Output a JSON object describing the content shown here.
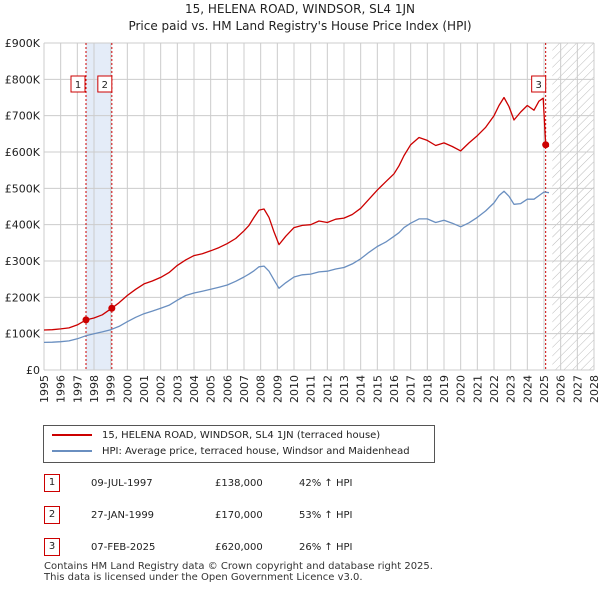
{
  "title_line1": "15, HELENA ROAD, WINDSOR, SL4 1JN",
  "title_line2": "Price paid vs. HM Land Registry's House Price Index (HPI)",
  "colors": {
    "property": "#cc0000",
    "hpi": "#6a8fc0",
    "shade": "#e4ecf8",
    "grid": "#cccccc",
    "vline": "#cc0000"
  },
  "legend": {
    "property_label": "15, HELENA ROAD, WINDSOR, SL4 1JN (terraced house)",
    "hpi_label": "HPI: Average price, terraced house, Windsor and Maidenhead"
  },
  "transactions": [
    {
      "num": "1",
      "date": "09-JUL-1997",
      "price": "£138,000",
      "hpi": "42% ↑ HPI"
    },
    {
      "num": "2",
      "date": "27-JAN-1999",
      "price": "£170,000",
      "hpi": "53% ↑ HPI"
    },
    {
      "num": "3",
      "date": "07-FEB-2025",
      "price": "£620,000",
      "hpi": "26% ↑ HPI"
    }
  ],
  "footer_line1": "Contains HM Land Registry data © Crown copyright and database right 2025.",
  "footer_line2": "This data is licensed under the Open Government Licence v3.0.",
  "chart_data": {
    "type": "line",
    "title": "15, HELENA ROAD, WINDSOR, SL4 1JN",
    "subtitle": "Price paid vs. HM Land Registry's House Price Index (HPI)",
    "xlim": [
      1995,
      2028
    ],
    "ylim": [
      0,
      900000
    ],
    "y_ticks": [
      0,
      100000,
      200000,
      300000,
      400000,
      500000,
      600000,
      700000,
      800000,
      900000
    ],
    "y_tick_labels": [
      "£0",
      "£100K",
      "£200K",
      "£300K",
      "£400K",
      "£500K",
      "£600K",
      "£700K",
      "£800K",
      "£900K"
    ],
    "x_ticks": [
      1995,
      1996,
      1997,
      1998,
      1999,
      2000,
      2001,
      2002,
      2003,
      2004,
      2005,
      2006,
      2007,
      2008,
      2009,
      2010,
      2011,
      2012,
      2013,
      2014,
      2015,
      2016,
      2017,
      2018,
      2019,
      2020,
      2021,
      2022,
      2023,
      2024,
      2025,
      2026,
      2027,
      2028
    ],
    "grid": true,
    "shaded_period": [
      1997.52,
      1999.07
    ],
    "future_hatch_from": 2025.5,
    "sales": [
      {
        "num": "1",
        "x": 1997.52,
        "y": 138000
      },
      {
        "num": "2",
        "x": 1999.07,
        "y": 170000
      },
      {
        "num": "3",
        "x": 2025.1,
        "y": 620000
      }
    ],
    "series": [
      {
        "name": "15, HELENA ROAD, WINDSOR, SL4 1JN (terraced house)",
        "x": [
          1995,
          1995.5,
          1996,
          1996.5,
          1997,
          1997.52,
          1998,
          1998.5,
          1999.07,
          1999.5,
          2000,
          2000.5,
          2001,
          2001.5,
          2002,
          2002.5,
          2003,
          2003.5,
          2004,
          2004.5,
          2005,
          2005.5,
          2006,
          2006.5,
          2007,
          2007.3,
          2007.6,
          2007.9,
          2008.2,
          2008.5,
          2008.8,
          2009.1,
          2009.5,
          2010,
          2010.5,
          2011,
          2011.5,
          2012,
          2012.5,
          2013,
          2013.5,
          2014,
          2014.5,
          2015,
          2015.5,
          2016,
          2016.3,
          2016.6,
          2017,
          2017.5,
          2018,
          2018.5,
          2019,
          2019.5,
          2020,
          2020.5,
          2021,
          2021.5,
          2022,
          2022.3,
          2022.6,
          2022.9,
          2023.2,
          2023.6,
          2024,
          2024.4,
          2024.7,
          2024.95,
          2025.1,
          2025.3
        ],
        "values": [
          110000,
          111000,
          113000,
          116000,
          124000,
          138000,
          143000,
          152000,
          170000,
          185000,
          205000,
          222000,
          237000,
          245000,
          255000,
          268000,
          288000,
          303000,
          315000,
          320000,
          328000,
          337000,
          348000,
          362000,
          383000,
          398000,
          420000,
          440000,
          443000,
          420000,
          380000,
          345000,
          368000,
          392000,
          398000,
          400000,
          410000,
          406000,
          415000,
          418000,
          428000,
          445000,
          470000,
          495000,
          518000,
          540000,
          562000,
          590000,
          620000,
          640000,
          632000,
          618000,
          625000,
          615000,
          603000,
          625000,
          645000,
          668000,
          700000,
          728000,
          750000,
          725000,
          688000,
          710000,
          728000,
          715000,
          740000,
          748000,
          620000,
          615000
        ]
      },
      {
        "name": "HPI: Average price, terraced house, Windsor and Maidenhead",
        "x": [
          1995,
          1995.5,
          1996,
          1996.5,
          1997,
          1997.5,
          1998,
          1998.5,
          1999,
          1999.5,
          2000,
          2000.5,
          2001,
          2001.5,
          2002,
          2002.5,
          2003,
          2003.5,
          2004,
          2004.5,
          2005,
          2005.5,
          2006,
          2006.5,
          2007,
          2007.3,
          2007.6,
          2007.9,
          2008.2,
          2008.5,
          2008.8,
          2009.1,
          2009.5,
          2010,
          2010.5,
          2011,
          2011.5,
          2012,
          2012.5,
          2013,
          2013.5,
          2014,
          2014.5,
          2015,
          2015.5,
          2016,
          2016.3,
          2016.6,
          2017,
          2017.5,
          2018,
          2018.5,
          2019,
          2019.5,
          2020,
          2020.5,
          2021,
          2021.5,
          2022,
          2022.3,
          2022.6,
          2022.9,
          2023.2,
          2023.6,
          2024,
          2024.4,
          2024.7,
          2025,
          2025.3
        ],
        "values": [
          76000,
          76500,
          78000,
          80000,
          86000,
          94000,
          100000,
          105000,
          111000,
          120000,
          133000,
          145000,
          155000,
          162000,
          170000,
          178000,
          192000,
          205000,
          212000,
          217000,
          222000,
          228000,
          234000,
          244000,
          256000,
          264000,
          273000,
          284000,
          286000,
          272000,
          248000,
          225000,
          240000,
          256000,
          262000,
          264000,
          270000,
          272000,
          278000,
          282000,
          292000,
          306000,
          324000,
          340000,
          352000,
          368000,
          378000,
          392000,
          404000,
          416000,
          416000,
          406000,
          412000,
          404000,
          394000,
          405000,
          420000,
          438000,
          460000,
          480000,
          492000,
          478000,
          456000,
          458000,
          470000,
          470000,
          480000,
          490000,
          488000
        ]
      }
    ]
  }
}
